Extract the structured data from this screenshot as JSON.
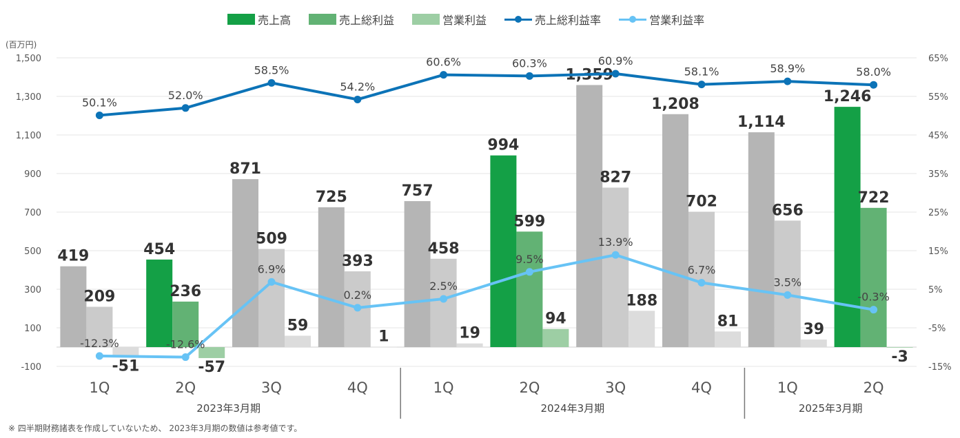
{
  "chart_data": {
    "type": "bar",
    "unit_label": "(百万円)",
    "footnote": "※ 四半期財務諸表を作成していないため、 2023年3月期の数値は参考値です。",
    "categories": [
      "1Q",
      "2Q",
      "3Q",
      "4Q",
      "1Q",
      "2Q",
      "3Q",
      "4Q",
      "1Q",
      "2Q"
    ],
    "groups": [
      {
        "label": "2023年3月期",
        "count": 4
      },
      {
        "label": "2024年3月期",
        "count": 4
      },
      {
        "label": "2025年3月期",
        "count": 2
      }
    ],
    "highlight_categories": [
      1,
      5,
      9
    ],
    "y_left": {
      "ylim": [
        -100,
        1500
      ],
      "ticks": [
        "-100",
        "100",
        "300",
        "500",
        "700",
        "900",
        "1,100",
        "1,300",
        "1,500"
      ]
    },
    "y_right": {
      "ylim": [
        -15,
        65
      ],
      "ticks": [
        "-15%",
        "-5%",
        "5%",
        "15%",
        "25%",
        "35%",
        "45%",
        "55%",
        "65%"
      ]
    },
    "series": [
      {
        "name": "売上高",
        "kind": "bar",
        "axis": "left",
        "color": "#14a046",
        "muted_color": "#b5b5b5",
        "values": [
          419,
          454,
          871,
          725,
          757,
          994,
          1359,
          1208,
          1114,
          1246
        ],
        "labels": [
          "419",
          "454",
          "871",
          "725",
          "757",
          "994",
          "1,359",
          "1,208",
          "1,114",
          "1,246"
        ]
      },
      {
        "name": "売上総利益",
        "kind": "bar",
        "axis": "left",
        "color": "#62b274",
        "muted_color": "#cbcbcb",
        "values": [
          209,
          236,
          509,
          393,
          458,
          599,
          827,
          702,
          656,
          722
        ],
        "labels": [
          "209",
          "236",
          "509",
          "393",
          "458",
          "599",
          "827",
          "702",
          "656",
          "722"
        ]
      },
      {
        "name": "営業利益",
        "kind": "bar",
        "axis": "left",
        "color": "#9dcea4",
        "muted_color": "#dcdcdc",
        "values": [
          -51,
          -57,
          59,
          1,
          19,
          94,
          188,
          81,
          39,
          -3
        ],
        "labels": [
          "-51",
          "-57",
          "59",
          "1",
          "19",
          "94",
          "188",
          "81",
          "39",
          "-3"
        ]
      },
      {
        "name": "売上総利益率",
        "kind": "line",
        "axis": "right",
        "color": "#0c73b7",
        "values": [
          50.1,
          52.0,
          58.5,
          54.2,
          60.6,
          60.3,
          60.9,
          58.1,
          58.9,
          58.0
        ],
        "labels": [
          "50.1%",
          "52.0%",
          "58.5%",
          "54.2%",
          "60.6%",
          "60.3%",
          "60.9%",
          "58.1%",
          "58.9%",
          "58.0%"
        ]
      },
      {
        "name": "営業利益率",
        "kind": "line",
        "axis": "right",
        "color": "#67c3f5",
        "values": [
          -12.3,
          -12.6,
          6.9,
          0.2,
          2.5,
          9.5,
          13.9,
          6.7,
          3.5,
          -0.3
        ],
        "labels": [
          "-12.3%",
          "-12.6%",
          "6.9%",
          "0.2%",
          "2.5%",
          "9.5%",
          "13.9%",
          "6.7%",
          "3.5%",
          "-0.3%"
        ]
      }
    ],
    "grid": true
  }
}
